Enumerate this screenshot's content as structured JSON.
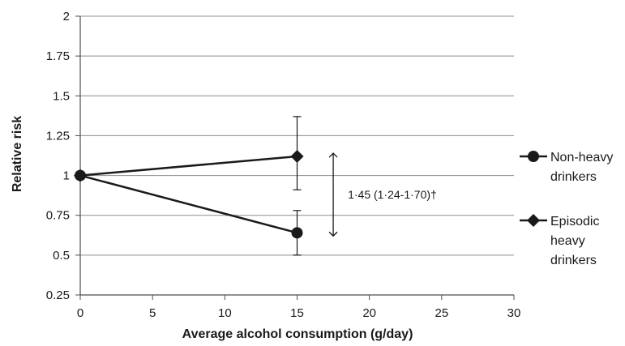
{
  "chart_data": {
    "type": "line",
    "xlabel": "Average alcohol consumption (g/day)",
    "ylabel": "Relative risk",
    "xlim": [
      0,
      30
    ],
    "ylim": [
      0.25,
      2
    ],
    "x_ticks": [
      "0",
      "5",
      "10",
      "15",
      "20",
      "25",
      "30"
    ],
    "y_ticks": [
      "0.25",
      "0.5",
      "0.75",
      "1",
      "1.25",
      "1.5",
      "1.75",
      "2"
    ],
    "grid": "horizontal",
    "legend_position": "right",
    "series": [
      {
        "name": "Non-heavy drinkers",
        "legend_lines": [
          "Non-heavy",
          "drinkers"
        ],
        "marker": "circle",
        "x": [
          0,
          15
        ],
        "y": [
          1,
          0.64
        ],
        "error_low": [
          null,
          0.5
        ],
        "error_high": [
          null,
          0.78
        ]
      },
      {
        "name": "Episodic heavy drinkers",
        "legend_lines": [
          "Episodic",
          "heavy",
          "drinkers"
        ],
        "marker": "diamond",
        "x": [
          0,
          15
        ],
        "y": [
          1,
          1.12
        ],
        "error_low": [
          null,
          0.91
        ],
        "error_high": [
          null,
          1.37
        ]
      }
    ],
    "annotation": {
      "text": "1·45 (1·24-1·70)†",
      "x": 17.5,
      "y_from": 0.62,
      "y_to": 1.14
    }
  }
}
